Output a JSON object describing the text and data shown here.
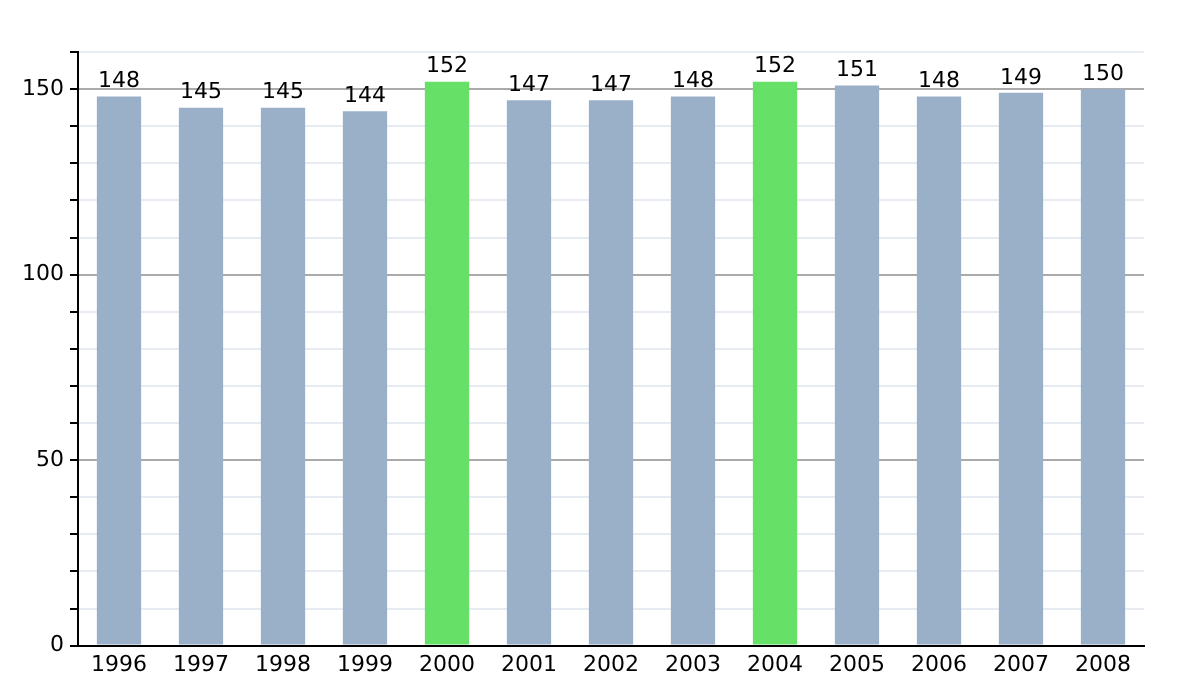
{
  "chart_data": {
    "type": "bar",
    "categories": [
      "1996",
      "1997",
      "1998",
      "1999",
      "2000",
      "2001",
      "2002",
      "2003",
      "2004",
      "2005",
      "2006",
      "2007",
      "2008"
    ],
    "values": [
      148,
      145,
      145,
      144,
      152,
      147,
      147,
      148,
      152,
      151,
      148,
      149,
      150
    ],
    "colors": [
      "#9ab0c8",
      "#9ab0c8",
      "#9ab0c8",
      "#9ab0c8",
      "#66e066",
      "#9ab0c8",
      "#9ab0c8",
      "#9ab0c8",
      "#66e066",
      "#9ab0c8",
      "#9ab0c8",
      "#9ab0c8",
      "#9ab0c8"
    ],
    "ylim": [
      0,
      160
    ],
    "yticks": [
      0,
      {
        "value": 10,
        "label": null
      },
      {
        "value": 20,
        "label": null
      },
      {
        "value": 30,
        "label": null
      },
      {
        "value": 40,
        "label": null
      },
      50,
      {
        "value": 60,
        "label": null
      },
      {
        "value": 70,
        "label": null
      },
      {
        "value": 80,
        "label": null
      },
      {
        "value": 90,
        "label": null
      },
      100,
      {
        "value": 110,
        "label": null
      },
      {
        "value": 120,
        "label": null
      },
      {
        "value": 130,
        "label": null
      },
      {
        "value": 140,
        "label": null
      },
      150,
      {
        "value": 160,
        "label": null
      }
    ],
    "grid": "y",
    "data_labels": true,
    "legend": false
  }
}
